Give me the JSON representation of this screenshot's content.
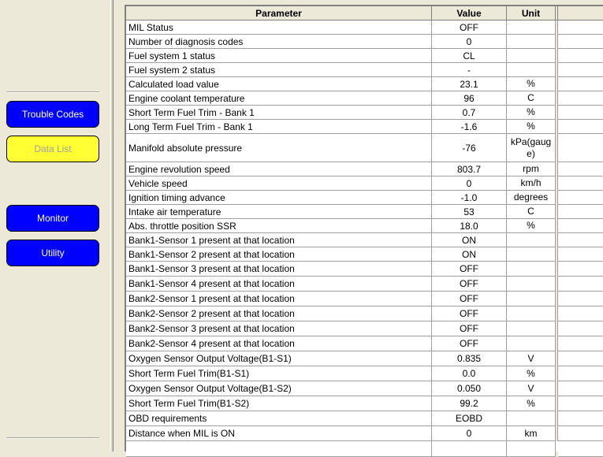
{
  "sidebar": {
    "buttons": [
      "Trouble Codes",
      "Data List",
      "Monitor",
      "Utility"
    ]
  },
  "table": {
    "columns": [
      "Parameter",
      "Value",
      "Unit"
    ],
    "rows": [
      [
        "MIL Status",
        "OFF",
        null
      ],
      [
        "Number of diagnosis codes",
        "0",
        null
      ],
      [
        "Fuel system 1 status",
        "CL",
        null
      ],
      [
        "Fuel system 2 status",
        "-",
        null
      ],
      [
        "Calculated load value",
        "23.1",
        "%"
      ],
      [
        "Engine coolant temperature",
        "96",
        "C"
      ],
      [
        "Short Term Fuel Trim - Bank 1",
        "0.7",
        "%"
      ],
      [
        "Long Term Fuel Trim - Bank 1",
        "-1.6",
        "%"
      ],
      [
        "Manifold absolute pressure",
        "-76",
        "kPa(gauge)"
      ],
      [
        "Engine revolution speed",
        "803.7",
        "rpm"
      ],
      [
        "Vehicle speed",
        "0",
        "km/h"
      ],
      [
        "Ignition timing advance",
        "-1.0",
        "degrees"
      ],
      [
        "Intake air temperature",
        "53",
        "C"
      ],
      [
        "Abs. throttle position SSR",
        "18.0",
        "%"
      ],
      [
        "Bank1-Sensor 1 present at that location",
        "ON",
        null
      ],
      [
        "Bank1-Sensor 2 present at that location",
        "ON",
        null
      ],
      [
        "Bank1-Sensor 3 present at that location",
        "OFF",
        null
      ],
      [
        "Bank1-Sensor 4 present at that location",
        "OFF",
        null
      ],
      [
        "Bank2-Sensor 1 present at that location",
        "OFF",
        null
      ],
      [
        "Bank2-Sensor 2 present at that location",
        "OFF",
        null
      ],
      [
        "Bank2-Sensor 3 present at that location",
        "OFF",
        null
      ],
      [
        "Bank2-Sensor 4 present at that location",
        "OFF",
        null
      ],
      [
        "Oxygen Sensor Output Voltage(B1-S1)",
        "0.835",
        "V"
      ],
      [
        "Short Term Fuel Trim(B1-S1)",
        "0.0",
        "%"
      ],
      [
        "Oxygen Sensor Output Voltage(B1-S2)",
        "0.050",
        "V"
      ],
      [
        "Short Term Fuel Trim(B1-S2)",
        "99.2",
        "%"
      ],
      [
        "OBD requirements",
        "EOBD",
        null
      ],
      [
        "Distance when MIL is ON",
        "0",
        "km"
      ]
    ]
  }
}
